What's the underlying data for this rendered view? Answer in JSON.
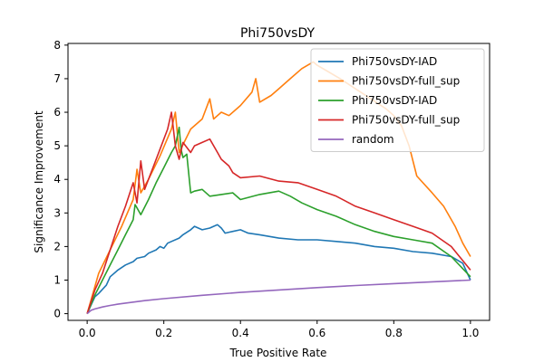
{
  "chart_data": {
    "type": "line",
    "title": "Phi750vsDY",
    "xlabel": "True Positive Rate",
    "ylabel": "Significance Improvement",
    "xlim": [
      -0.05,
      1.05
    ],
    "ylim": [
      -0.2,
      8.05
    ],
    "xticks": [
      0.0,
      0.2,
      0.4,
      0.6,
      0.8,
      1.0
    ],
    "xtick_labels": [
      "0.0",
      "0.2",
      "0.4",
      "0.6",
      "0.8",
      "1.0"
    ],
    "yticks": [
      0,
      1,
      2,
      3,
      4,
      5,
      6,
      7,
      8
    ],
    "ytick_labels": [
      "0",
      "1",
      "2",
      "3",
      "4",
      "5",
      "6",
      "7",
      "8"
    ],
    "grid": false,
    "legend_position": "top-right",
    "series": [
      {
        "name": "Phi750vsDY-IAD",
        "color": "#1f77b4",
        "x": [
          0.0,
          0.02,
          0.03,
          0.05,
          0.06,
          0.08,
          0.1,
          0.12,
          0.13,
          0.15,
          0.16,
          0.18,
          0.19,
          0.2,
          0.21,
          0.22,
          0.24,
          0.25,
          0.27,
          0.28,
          0.3,
          0.32,
          0.33,
          0.34,
          0.35,
          0.36,
          0.38,
          0.4,
          0.42,
          0.45,
          0.5,
          0.55,
          0.6,
          0.65,
          0.7,
          0.75,
          0.8,
          0.85,
          0.9,
          0.95,
          0.98,
          1.0
        ],
        "y": [
          0.0,
          0.5,
          0.6,
          0.85,
          1.1,
          1.3,
          1.45,
          1.55,
          1.65,
          1.7,
          1.8,
          1.9,
          2.0,
          1.95,
          2.1,
          2.15,
          2.25,
          2.35,
          2.5,
          2.6,
          2.5,
          2.55,
          2.6,
          2.65,
          2.55,
          2.4,
          2.45,
          2.5,
          2.4,
          2.35,
          2.25,
          2.2,
          2.2,
          2.15,
          2.1,
          2.0,
          1.95,
          1.85,
          1.8,
          1.7,
          1.5,
          1.0
        ]
      },
      {
        "name": "Phi750vsDY-full_sup",
        "color": "#ff7f0e",
        "x": [
          0.0,
          0.03,
          0.06,
          0.09,
          0.12,
          0.13,
          0.14,
          0.16,
          0.19,
          0.22,
          0.23,
          0.24,
          0.27,
          0.3,
          0.32,
          0.33,
          0.35,
          0.37,
          0.4,
          0.43,
          0.44,
          0.45,
          0.48,
          0.5,
          0.53,
          0.56,
          0.59,
          0.6,
          0.63,
          0.66,
          0.7,
          0.74,
          0.78,
          0.8,
          0.82,
          0.84,
          0.86,
          0.9,
          0.93,
          0.96,
          0.98,
          1.0
        ],
        "y": [
          0.0,
          1.2,
          1.9,
          2.6,
          3.4,
          4.3,
          3.6,
          4.0,
          4.7,
          5.5,
          6.0,
          4.8,
          5.5,
          5.8,
          6.4,
          5.8,
          6.0,
          5.9,
          6.2,
          6.6,
          7.0,
          6.3,
          6.5,
          6.7,
          7.0,
          7.3,
          7.5,
          7.4,
          7.2,
          7.0,
          6.7,
          6.4,
          6.1,
          5.9,
          5.6,
          5.0,
          4.1,
          3.6,
          3.2,
          2.6,
          2.1,
          1.7
        ]
      },
      {
        "name": "Phi750vsDY-IAD",
        "color": "#2ca02c",
        "x": [
          0.0,
          0.02,
          0.04,
          0.06,
          0.08,
          0.1,
          0.12,
          0.125,
          0.14,
          0.16,
          0.18,
          0.2,
          0.22,
          0.23,
          0.24,
          0.245,
          0.25,
          0.26,
          0.27,
          0.28,
          0.3,
          0.32,
          0.35,
          0.38,
          0.4,
          0.45,
          0.5,
          0.53,
          0.56,
          0.6,
          0.65,
          0.7,
          0.75,
          0.8,
          0.85,
          0.9,
          0.95,
          1.0
        ],
        "y": [
          0.0,
          0.55,
          1.0,
          1.45,
          1.9,
          2.35,
          2.8,
          3.25,
          2.95,
          3.4,
          3.9,
          4.35,
          4.8,
          5.0,
          5.55,
          4.9,
          4.65,
          4.75,
          3.6,
          3.65,
          3.7,
          3.5,
          3.55,
          3.6,
          3.4,
          3.55,
          3.65,
          3.5,
          3.3,
          3.1,
          2.9,
          2.65,
          2.45,
          2.3,
          2.2,
          2.1,
          1.7,
          1.1
        ]
      },
      {
        "name": "Phi750vsDY-full_sup",
        "color": "#d62728",
        "x": [
          0.0,
          0.02,
          0.04,
          0.06,
          0.08,
          0.1,
          0.12,
          0.13,
          0.14,
          0.15,
          0.17,
          0.19,
          0.21,
          0.22,
          0.23,
          0.24,
          0.25,
          0.27,
          0.28,
          0.3,
          0.32,
          0.34,
          0.35,
          0.37,
          0.38,
          0.4,
          0.45,
          0.5,
          0.55,
          0.6,
          0.65,
          0.7,
          0.75,
          0.8,
          0.85,
          0.9,
          0.95,
          1.0
        ],
        "y": [
          0.0,
          0.7,
          1.2,
          1.9,
          2.6,
          3.2,
          3.9,
          3.3,
          4.55,
          3.7,
          4.3,
          4.9,
          5.5,
          6.0,
          5.0,
          4.6,
          5.1,
          4.8,
          5.0,
          5.1,
          5.2,
          4.8,
          4.6,
          4.4,
          4.2,
          4.05,
          4.1,
          3.95,
          3.9,
          3.7,
          3.5,
          3.2,
          3.0,
          2.8,
          2.6,
          2.4,
          2.0,
          1.3
        ]
      },
      {
        "name": "random",
        "color": "#9467bd",
        "x": [
          0.0,
          0.01,
          0.02,
          0.04,
          0.06,
          0.08,
          0.1,
          0.15,
          0.2,
          0.3,
          0.4,
          0.5,
          0.6,
          0.7,
          0.8,
          0.9,
          1.0
        ],
        "y": [
          0.0,
          0.1,
          0.14,
          0.2,
          0.245,
          0.283,
          0.316,
          0.387,
          0.447,
          0.548,
          0.632,
          0.707,
          0.775,
          0.837,
          0.894,
          0.949,
          1.0
        ]
      }
    ]
  }
}
